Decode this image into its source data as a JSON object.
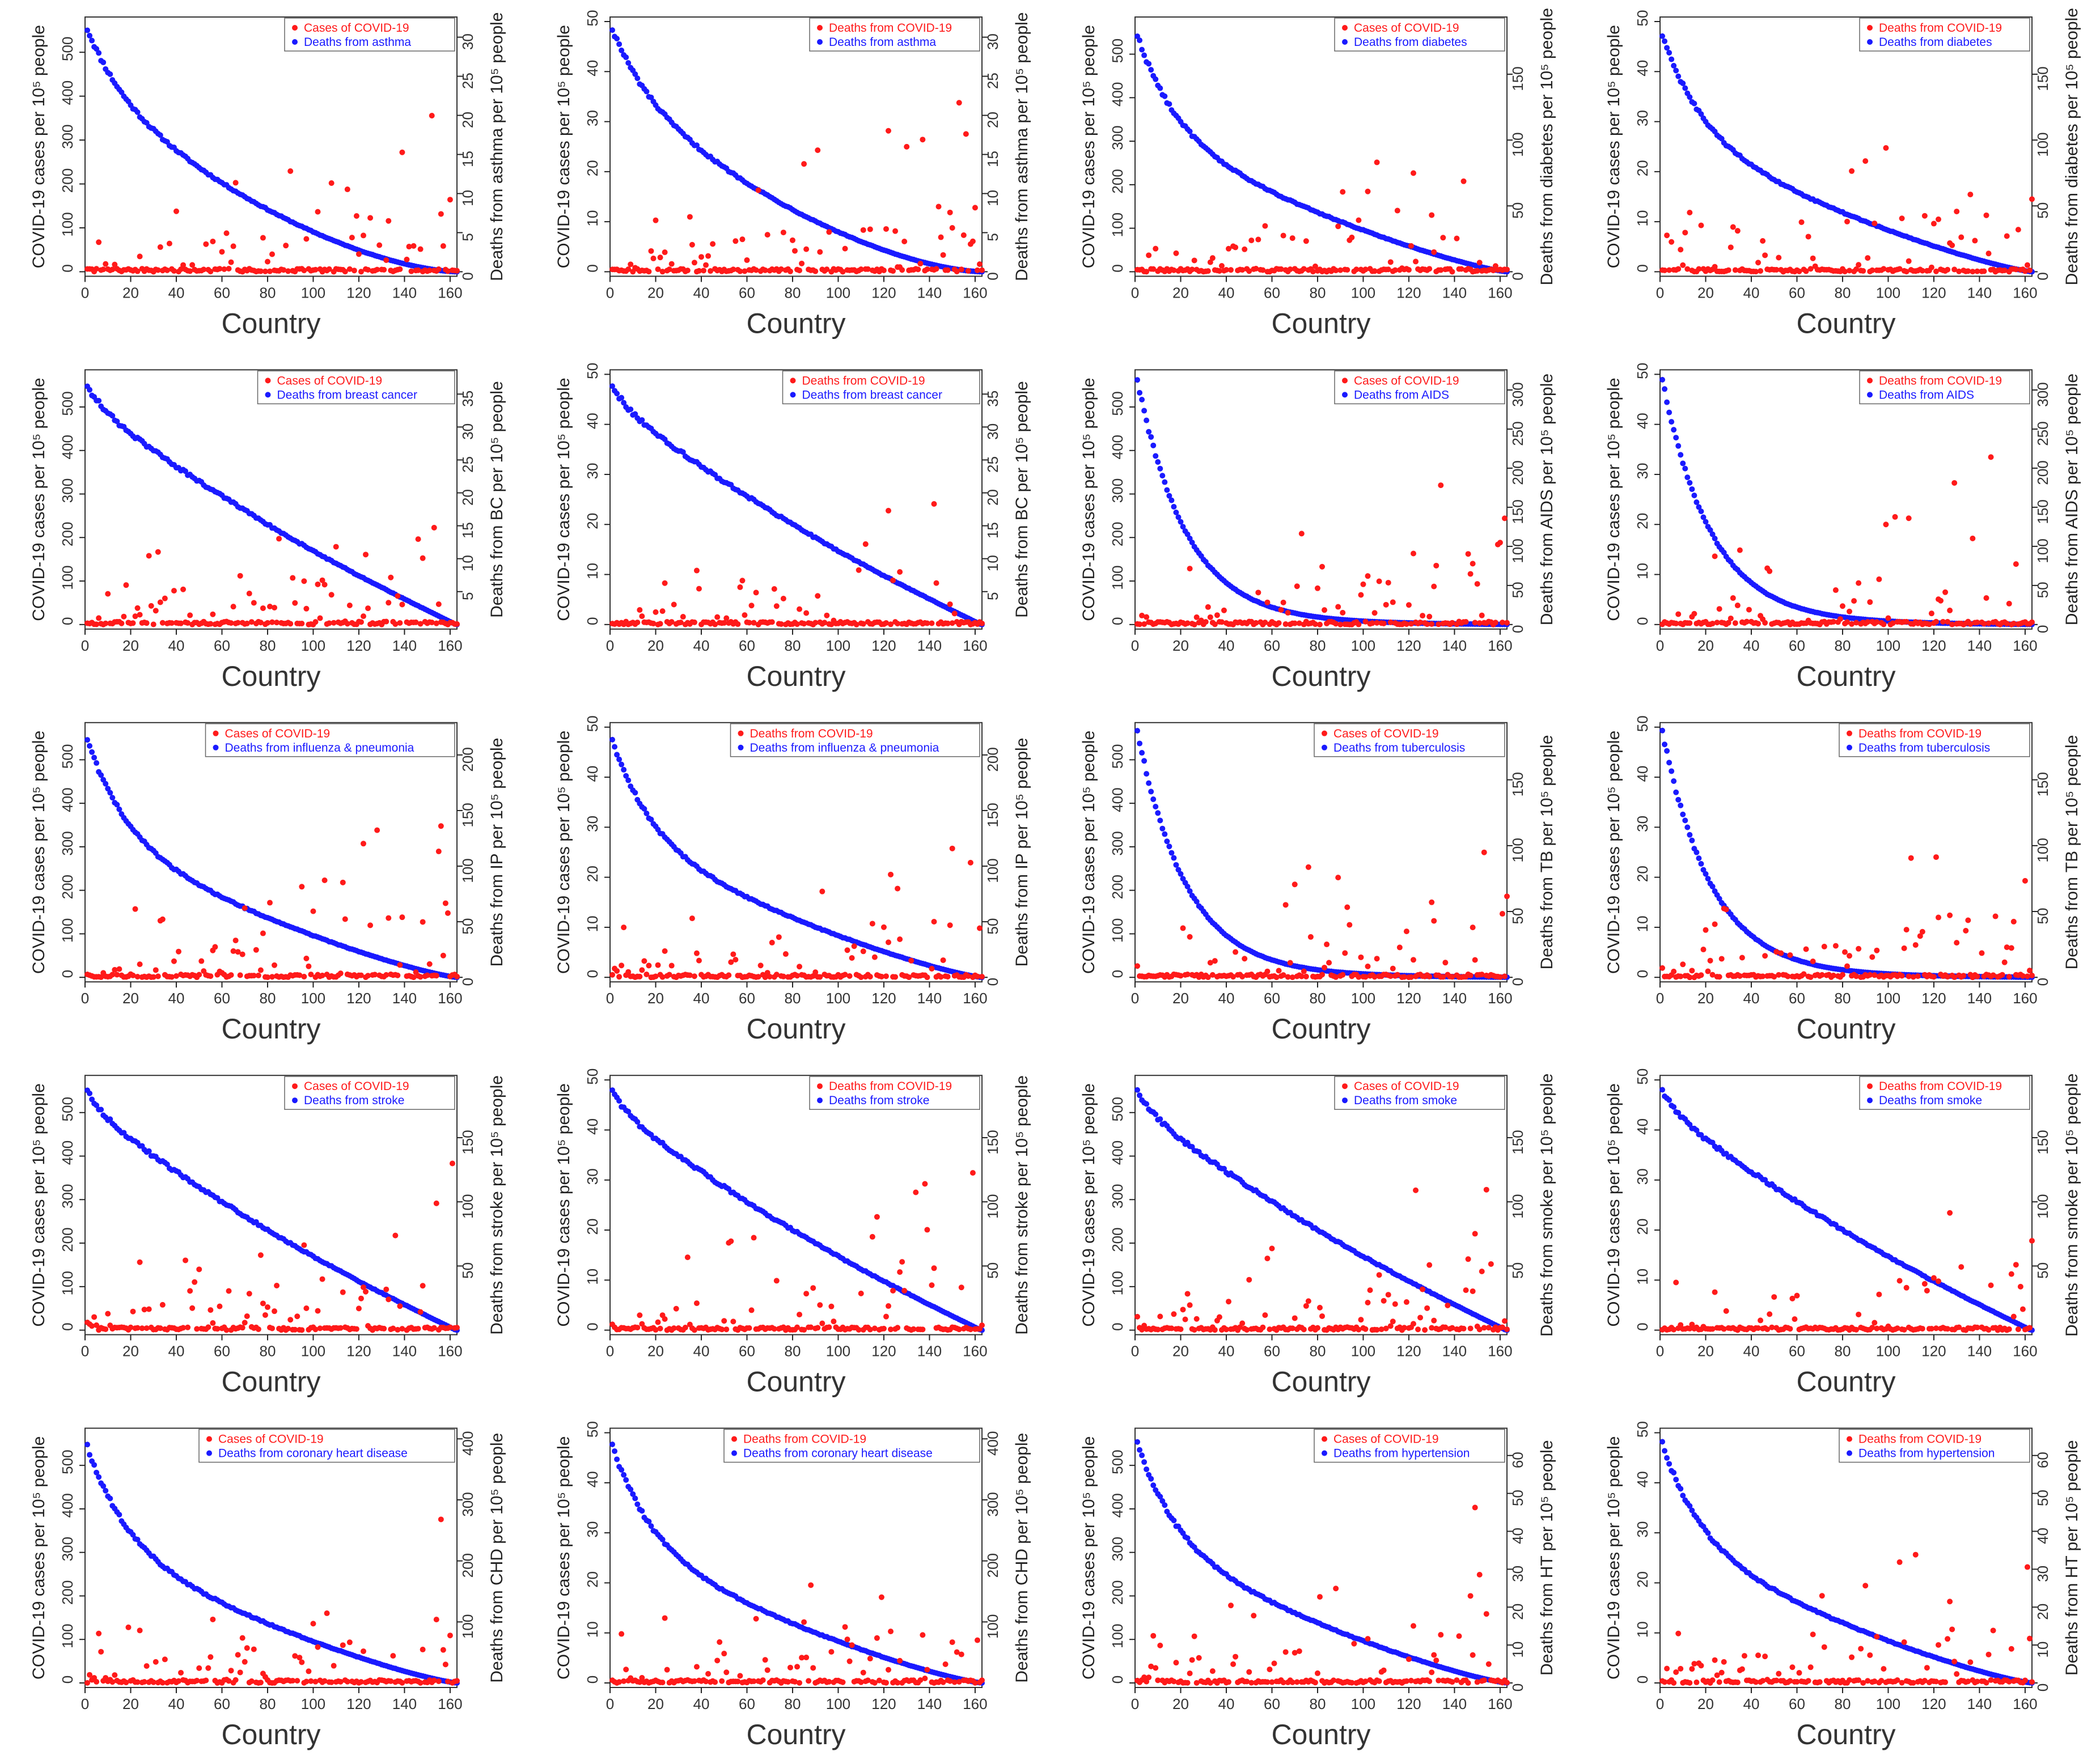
{
  "figure": {
    "x_axis_label": "Country",
    "left_axis_label": "COVID-19 cases per 10⁵ people",
    "left_axis_label_deaths": "COVID-19 cases per 10⁵ people",
    "x_ticks": [
      "0",
      "20",
      "40",
      "60",
      "80",
      "100",
      "120",
      "140",
      "160"
    ],
    "colors": {
      "covid_series": "#ff1a1a",
      "disease_series": "#1a1aff"
    },
    "legend_covid_cases": "Cases of COVID-19",
    "legend_covid_deaths": "Deaths from COVID-19"
  },
  "chart_data": [
    {
      "type": "scatter",
      "disease": "asthma",
      "covid_metric": "cases",
      "legend": [
        "Cases of COVID-19",
        "Deaths from asthma"
      ],
      "xlabel": "Country",
      "ylabel_left": "COVID-19 cases per 10⁵ people",
      "ylabel_right": "Deaths from asthma per 10⁵ people",
      "ylim_left": [
        0,
        570
      ],
      "yticks_left": [
        0,
        100,
        200,
        300,
        400,
        500
      ],
      "ylim_right": [
        0,
        32
      ],
      "yticks_right": [
        0,
        5,
        10,
        15,
        20,
        25,
        30
      ],
      "xlim": [
        0,
        163
      ],
      "n": 163,
      "right_max": 32,
      "left_max": 575,
      "decay": "gradual"
    },
    {
      "type": "scatter",
      "disease": "asthma",
      "covid_metric": "deaths",
      "legend": [
        "Deaths from COVID-19",
        "Deaths from asthma"
      ],
      "xlabel": "Country",
      "ylabel_left": "COVID-19 cases per 10⁵ people",
      "ylabel_right": "Deaths from asthma per 10⁵ people",
      "ylim_left": [
        0,
        50
      ],
      "yticks_left": [
        0,
        10,
        20,
        30,
        40,
        50
      ],
      "ylim_right": [
        0,
        32
      ],
      "yticks_right": [
        0,
        5,
        10,
        15,
        20,
        25,
        30
      ],
      "xlim": [
        0,
        163
      ],
      "n": 163,
      "right_max": 32,
      "left_max": 49,
      "decay": "gradual"
    },
    {
      "type": "scatter",
      "disease": "diabetes",
      "covid_metric": "cases",
      "legend": [
        "Cases of COVID-19",
        "Deaths from diabetes"
      ],
      "xlabel": "Country",
      "ylabel_left": "COVID-19 cases per 10⁵ people",
      "ylabel_right": "Deaths from diabetes per 10⁵ people",
      "ylim_left": [
        0,
        575
      ],
      "yticks_left": [
        0,
        100,
        200,
        300,
        400,
        500
      ],
      "ylim_right": [
        0,
        190
      ],
      "yticks_right": [
        0,
        50,
        100,
        150
      ],
      "xlim": [
        0,
        163
      ],
      "n": 163,
      "right_max": 185,
      "left_max": 575,
      "decay": "steep-start"
    },
    {
      "type": "scatter",
      "disease": "diabetes",
      "covid_metric": "deaths",
      "legend": [
        "Deaths from COVID-19",
        "Deaths from diabetes"
      ],
      "xlabel": "Country",
      "ylabel_left": "COVID-19 cases per 10⁵ people",
      "ylabel_right": "Deaths from diabetes per 10⁵ people",
      "ylim_left": [
        0,
        50
      ],
      "yticks_left": [
        0,
        10,
        20,
        30,
        40,
        50
      ],
      "ylim_right": [
        0,
        190
      ],
      "yticks_right": [
        0,
        50,
        100,
        150
      ],
      "xlim": [
        0,
        163
      ],
      "n": 163,
      "right_max": 185,
      "left_max": 49,
      "decay": "steep-start"
    },
    {
      "type": "scatter",
      "disease": "breast cancer",
      "covid_metric": "cases",
      "legend": [
        "Cases of COVID-19",
        "Deaths from breast cancer"
      ],
      "xlabel": "Country",
      "ylabel_left": "COVID-19 cases per 10⁵ people",
      "ylabel_right": "Deaths from BC per 10⁵ people",
      "ylim_left": [
        0,
        575
      ],
      "yticks_left": [
        0,
        100,
        200,
        300,
        400,
        500
      ],
      "ylim_right": [
        0,
        38
      ],
      "yticks_right": [
        5,
        10,
        15,
        20,
        25,
        30,
        35
      ],
      "xlim": [
        0,
        163
      ],
      "n": 163,
      "right_max": 37,
      "left_max": 575,
      "decay": "linear"
    },
    {
      "type": "scatter",
      "disease": "breast cancer",
      "covid_metric": "deaths",
      "legend": [
        "Deaths from COVID-19",
        "Deaths from breast cancer"
      ],
      "xlabel": "Country",
      "ylabel_left": "COVID-19 cases per 10⁵ people",
      "ylabel_right": "Deaths from BC per 10⁵ people",
      "ylim_left": [
        0,
        50
      ],
      "yticks_left": [
        0,
        10,
        20,
        30,
        40,
        50
      ],
      "ylim_right": [
        0,
        38
      ],
      "yticks_right": [
        5,
        10,
        15,
        20,
        25,
        30,
        35
      ],
      "xlim": [
        0,
        163
      ],
      "n": 163,
      "right_max": 37,
      "left_max": 49,
      "decay": "linear"
    },
    {
      "type": "scatter",
      "disease": "AIDS",
      "covid_metric": "cases",
      "legend": [
        "Cases of COVID-19",
        "Deaths from AIDS"
      ],
      "xlabel": "Country",
      "ylabel_left": "COVID-19 cases per 10⁵ people",
      "ylabel_right": "Deaths from AIDS per 10⁵ people",
      "ylim_left": [
        0,
        575
      ],
      "yticks_left": [
        0,
        100,
        200,
        300,
        400,
        500
      ],
      "ylim_right": [
        0,
        320
      ],
      "yticks_right": [
        0,
        50,
        100,
        150,
        200,
        250,
        300
      ],
      "xlim": [
        0,
        163
      ],
      "n": 163,
      "right_max": 310,
      "left_max": 575,
      "decay": "exponential"
    },
    {
      "type": "scatter",
      "disease": "AIDS",
      "covid_metric": "deaths",
      "legend": [
        "Deaths from COVID-19",
        "Deaths from AIDS"
      ],
      "xlabel": "Country",
      "ylabel_left": "COVID-19 cases per 10⁵ people",
      "ylabel_right": "Deaths from AIDS per 10⁵ people",
      "ylim_left": [
        0,
        50
      ],
      "yticks_left": [
        0,
        10,
        20,
        30,
        40,
        50
      ],
      "ylim_right": [
        0,
        320
      ],
      "yticks_right": [
        0,
        50,
        100,
        150,
        200,
        250,
        300
      ],
      "xlim": [
        0,
        163
      ],
      "n": 163,
      "right_max": 310,
      "left_max": 49,
      "decay": "exponential"
    },
    {
      "type": "scatter",
      "disease": "influenza & pneumonia",
      "covid_metric": "cases",
      "legend": [
        "Cases of COVID-19",
        "Deaths from influenza & pneumonia"
      ],
      "xlabel": "Country",
      "ylabel_left": "COVID-19 cases per 10⁵ people",
      "ylabel_right": "Deaths from IP per 10⁵ people",
      "ylim_left": [
        0,
        575
      ],
      "yticks_left": [
        0,
        100,
        200,
        300,
        400,
        500
      ],
      "ylim_right": [
        0,
        225
      ],
      "yticks_right": [
        0,
        50,
        100,
        150,
        200
      ],
      "xlim": [
        0,
        163
      ],
      "n": 163,
      "right_max": 220,
      "left_max": 575,
      "decay": "steep-start"
    },
    {
      "type": "scatter",
      "disease": "influenza & pneumonia",
      "covid_metric": "deaths",
      "legend": [
        "Deaths from COVID-19",
        "Deaths from influenza & pneumonia"
      ],
      "xlabel": "Country",
      "ylabel_left": "COVID-19 cases per 10⁵ people",
      "ylabel_right": "Deaths from IP per 10⁵ people",
      "ylim_left": [
        0,
        50
      ],
      "yticks_left": [
        0,
        10,
        20,
        30,
        40,
        50
      ],
      "ylim_right": [
        0,
        225
      ],
      "yticks_right": [
        0,
        50,
        100,
        150,
        200
      ],
      "xlim": [
        0,
        163
      ],
      "n": 163,
      "right_max": 220,
      "left_max": 49,
      "decay": "steep-start"
    },
    {
      "type": "scatter",
      "disease": "tuberculosis",
      "covid_metric": "cases",
      "legend": [
        "Cases of COVID-19",
        "Deaths from tuberculosis"
      ],
      "xlabel": "Country",
      "ylabel_left": "COVID-19 cases per 10⁵ people",
      "ylabel_right": "Deaths from TB per 10⁵ people",
      "ylim_left": [
        0,
        575
      ],
      "yticks_left": [
        0,
        100,
        200,
        300,
        400,
        500
      ],
      "ylim_right": [
        0,
        190
      ],
      "yticks_right": [
        0,
        50,
        100,
        150
      ],
      "xlim": [
        0,
        163
      ],
      "n": 163,
      "right_max": 185,
      "left_max": 575,
      "decay": "exponential"
    },
    {
      "type": "scatter",
      "disease": "tuberculosis",
      "covid_metric": "deaths",
      "legend": [
        "Deaths from COVID-19",
        "Deaths from tuberculosis"
      ],
      "xlabel": "Country",
      "ylabel_left": "COVID-19 cases per 10⁵ people",
      "ylabel_right": "Deaths from TB per 10⁵ people",
      "ylim_left": [
        0,
        50
      ],
      "yticks_left": [
        0,
        10,
        20,
        30,
        40,
        50
      ],
      "ylim_right": [
        0,
        190
      ],
      "yticks_right": [
        0,
        50,
        100,
        150
      ],
      "xlim": [
        0,
        163
      ],
      "n": 163,
      "right_max": 185,
      "left_max": 49,
      "decay": "exponential"
    },
    {
      "type": "scatter",
      "disease": "stroke",
      "covid_metric": "cases",
      "legend": [
        "Cases of COVID-19",
        "Deaths from stroke"
      ],
      "xlabel": "Country",
      "ylabel_left": "COVID-19 cases per 10⁵ people",
      "ylabel_right": "Deaths from stroke per 10⁵ people",
      "ylim_left": [
        0,
        575
      ],
      "yticks_left": [
        0,
        100,
        200,
        300,
        400,
        500
      ],
      "ylim_right": [
        0,
        195
      ],
      "yticks_right": [
        50,
        100,
        150
      ],
      "xlim": [
        0,
        163
      ],
      "n": 163,
      "right_max": 190,
      "left_max": 575,
      "decay": "linear"
    },
    {
      "type": "scatter",
      "disease": "stroke",
      "covid_metric": "deaths",
      "legend": [
        "Deaths from COVID-19",
        "Deaths from stroke"
      ],
      "xlabel": "Country",
      "ylabel_left": "COVID-19 cases per 10⁵ people",
      "ylabel_right": "Deaths from stroke per 10⁵ people",
      "ylim_left": [
        0,
        50
      ],
      "yticks_left": [
        0,
        10,
        20,
        30,
        40,
        50
      ],
      "ylim_right": [
        0,
        195
      ],
      "yticks_right": [
        50,
        100,
        150
      ],
      "xlim": [
        0,
        163
      ],
      "n": 163,
      "right_max": 190,
      "left_max": 49,
      "decay": "linear"
    },
    {
      "type": "scatter",
      "disease": "smoke",
      "covid_metric": "cases",
      "legend": [
        "Cases of COVID-19",
        "Deaths from smoke"
      ],
      "xlabel": "Country",
      "ylabel_left": "COVID-19 cases per 10⁵ people",
      "ylabel_right": "Deaths from smoke per 10⁵ people",
      "ylim_left": [
        0,
        575
      ],
      "yticks_left": [
        0,
        100,
        200,
        300,
        400,
        500
      ],
      "ylim_right": [
        0,
        195
      ],
      "yticks_right": [
        50,
        100,
        150
      ],
      "xlim": [
        0,
        163
      ],
      "n": 163,
      "right_max": 190,
      "left_max": 575,
      "decay": "linear"
    },
    {
      "type": "scatter",
      "disease": "smoke",
      "covid_metric": "deaths",
      "legend": [
        "Deaths from COVID-19",
        "Deaths from smoke"
      ],
      "xlabel": "Country",
      "ylabel_left": "COVID-19 cases per 10⁵ people",
      "ylabel_right": "Deaths from smoke per 10⁵ people",
      "ylim_left": [
        0,
        50
      ],
      "yticks_left": [
        0,
        10,
        20,
        30,
        40,
        50
      ],
      "ylim_right": [
        0,
        195
      ],
      "yticks_right": [
        50,
        100,
        150
      ],
      "xlim": [
        0,
        163
      ],
      "n": 163,
      "right_max": 190,
      "left_max": 49,
      "decay": "linear"
    },
    {
      "type": "scatter",
      "disease": "coronary heart disease",
      "covid_metric": "cases",
      "legend": [
        "Cases of COVID-19",
        "Deaths from coronary heart disease"
      ],
      "xlabel": "Country",
      "ylabel_left": "COVID-19 cases per 10⁵ people",
      "ylabel_right": "Deaths from CHD per 10⁵ people",
      "ylim_left": [
        0,
        575
      ],
      "yticks_left": [
        0,
        100,
        200,
        300,
        400,
        500
      ],
      "ylim_right": [
        0,
        410
      ],
      "yticks_right": [
        100,
        200,
        300,
        400
      ],
      "xlim": [
        0,
        163
      ],
      "n": 163,
      "right_max": 400,
      "left_max": 575,
      "decay": "steep-start"
    },
    {
      "type": "scatter",
      "disease": "coronary heart disease",
      "covid_metric": "deaths",
      "legend": [
        "Deaths from COVID-19",
        "Deaths from coronary heart disease"
      ],
      "xlabel": "Country",
      "ylabel_left": "COVID-19 cases per 10⁵ people",
      "ylabel_right": "Deaths from CHD per 10⁵ people",
      "ylim_left": [
        0,
        50
      ],
      "yticks_left": [
        0,
        10,
        20,
        30,
        40,
        50
      ],
      "ylim_right": [
        0,
        410
      ],
      "yticks_right": [
        100,
        200,
        300,
        400
      ],
      "xlim": [
        0,
        163
      ],
      "n": 163,
      "right_max": 400,
      "left_max": 49,
      "decay": "steep-start"
    },
    {
      "type": "scatter",
      "disease": "hypertension",
      "covid_metric": "cases",
      "legend": [
        "Cases of COVID-19",
        "Deaths from hypertension"
      ],
      "xlabel": "Country",
      "ylabel_left": "COVID-19 cases per 10⁵ people",
      "ylabel_right": "Deaths from HT per 10⁵ people",
      "ylim_left": [
        0,
        575
      ],
      "yticks_left": [
        0,
        100,
        200,
        300,
        400,
        500
      ],
      "ylim_right": [
        0,
        66
      ],
      "yticks_right": [
        0,
        10,
        20,
        30,
        40,
        50,
        60
      ],
      "xlim": [
        0,
        163
      ],
      "n": 163,
      "right_max": 65,
      "left_max": 575,
      "decay": "steep-start"
    },
    {
      "type": "scatter",
      "disease": "hypertension",
      "covid_metric": "deaths",
      "legend": [
        "Deaths from COVID-19",
        "Deaths from hypertension"
      ],
      "xlabel": "Country",
      "ylabel_left": "COVID-19 cases per 10⁵ people",
      "ylabel_right": "Deaths from HT per 10⁵ people",
      "ylim_left": [
        0,
        50
      ],
      "yticks_left": [
        0,
        10,
        20,
        30,
        40,
        50
      ],
      "ylim_right": [
        0,
        66
      ],
      "yticks_right": [
        0,
        10,
        20,
        30,
        40,
        50,
        60
      ],
      "xlim": [
        0,
        163
      ],
      "n": 163,
      "right_max": 65,
      "left_max": 49,
      "decay": "steep-start"
    }
  ]
}
